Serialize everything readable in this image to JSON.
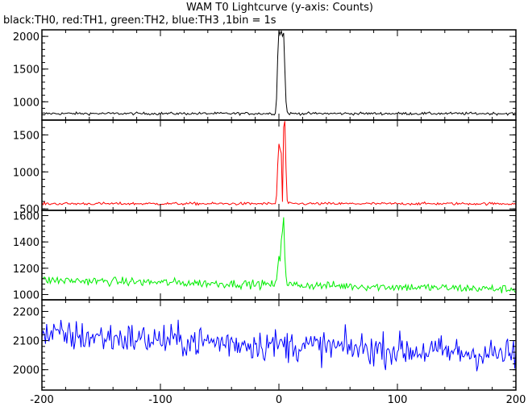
{
  "chart_data": {
    "type": "line",
    "title": "WAM T0 Lightcurve (y-axis: Counts)",
    "subtitle": "black:TH0, red:TH1, green:TH2, blue:TH3 ,1bin = 1s",
    "xlabel": "",
    "ylabel": "",
    "xlim": [
      -200,
      200
    ],
    "x_ticks": [
      -200,
      -100,
      0,
      100,
      200
    ],
    "grid": false,
    "panels": [
      {
        "name": "TH0",
        "color": "#000000",
        "ylim": [
          720,
          2100
        ],
        "y_ticks": [
          1000,
          1500,
          2000
        ],
        "baseline": 820,
        "noise": 20,
        "burst": [
          [
            -3,
            820
          ],
          [
            -2,
            1050
          ],
          [
            -1,
            1700
          ],
          [
            0,
            2100
          ],
          [
            1,
            2030
          ],
          [
            2,
            2080
          ],
          [
            3,
            2000
          ],
          [
            4,
            2060
          ],
          [
            5,
            1500
          ],
          [
            6,
            1000
          ],
          [
            7,
            850
          ],
          [
            8,
            820
          ]
        ]
      },
      {
        "name": "TH1",
        "color": "#ff0000",
        "ylim": [
          480,
          1700
        ],
        "y_ticks": [
          500,
          1000,
          1500
        ],
        "baseline": 570,
        "noise": 18,
        "burst": [
          [
            -3,
            570
          ],
          [
            -2,
            680
          ],
          [
            -1,
            1100
          ],
          [
            0,
            1380
          ],
          [
            1,
            1300
          ],
          [
            2,
            1250
          ],
          [
            3,
            600
          ],
          [
            4,
            1600
          ],
          [
            5,
            1680
          ],
          [
            6,
            1050
          ],
          [
            7,
            620
          ],
          [
            8,
            570
          ]
        ]
      },
      {
        "name": "TH2",
        "color": "#00ee00",
        "ylim": [
          960,
          1640
        ],
        "y_ticks": [
          1000,
          1200,
          1400,
          1600
        ],
        "baseline_start": 1110,
        "baseline_end": 1040,
        "noise": 32,
        "burst": [
          [
            -2,
            1100
          ],
          [
            -1,
            1200
          ],
          [
            0,
            1300
          ],
          [
            1,
            1260
          ],
          [
            2,
            1420
          ],
          [
            3,
            1480
          ],
          [
            4,
            1600
          ],
          [
            5,
            1300
          ],
          [
            6,
            1130
          ],
          [
            7,
            1080
          ]
        ]
      },
      {
        "name": "TH3",
        "color": "#0000ff",
        "ylim": [
          1930,
          2240
        ],
        "y_ticks": [
          2000,
          2100,
          2200
        ],
        "baseline_start": 2120,
        "baseline_end": 2050,
        "noise": 55
      }
    ]
  }
}
